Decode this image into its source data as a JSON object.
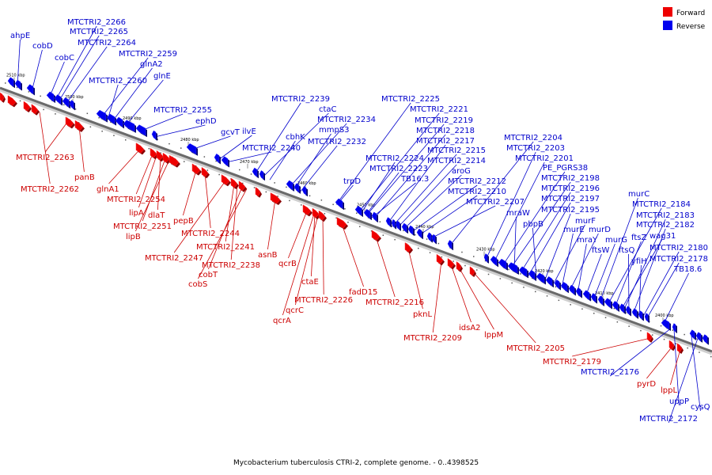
{
  "legend": [
    {
      "label": "Forward",
      "color": "#ee0000"
    },
    {
      "label": "Reverse",
      "color": "#0000ee"
    }
  ],
  "caption": "Mycobacterium tuberculosis CTRI-2, complete genome. - 0..4398525",
  "ticks": [
    "2510 kbp",
    "2500 kbp",
    "2490 kbp",
    "2480 kbp",
    "2470 kbp",
    "2460 kbp",
    "2450 kbp",
    "2440 kbp",
    "2430 kbp",
    "2420 kbp",
    "2410 kbp",
    "2400 kbp"
  ],
  "reverse_labels": [
    "ahpE",
    "cobD",
    "MTCTRI2_2266",
    "MTCTRI2_2265",
    "MTCTRI2_2264",
    "cobC",
    "MTCTRI2_2259",
    "glnA2",
    "MTCTRI2_2260",
    "glnE",
    "MTCTRI2_2255",
    "ephD",
    "gcvT",
    "ilvE",
    "MTCTRI2_2240",
    "MTCTRI2_2239",
    "ctaC",
    "MTCTRI2_2234",
    "cbhK",
    "mmpS3",
    "MTCTRI2_2232",
    "trpD",
    "MTCTRI2_2225",
    "MTCTRI2_2221",
    "MTCTRI2_2219",
    "MTCTRI2_2218",
    "MTCTRI2_2217",
    "MTCTRI2_2215",
    "MTCTRI2_2214",
    "MTCTRI2_2224",
    "MTCTRI2_2223",
    "aroG",
    "TB16.3",
    "MTCTRI2_2212",
    "MTCTRI2_2210",
    "MTCTRI2_2207",
    "MTCTRI2_2204",
    "MTCTRI2_2203",
    "MTCTRI2_2201",
    "PE_PGRS38",
    "MTCTRI2_2198",
    "mraW",
    "MTCTRI2_2196",
    "MTCTRI2_2197",
    "pbpB",
    "MTCTRI2_2195",
    "murF",
    "murE",
    "murD",
    "mraY",
    "ftsW",
    "murG",
    "murC",
    "MTCTRI2_2184",
    "ftsZ",
    "wag31",
    "MTCTRI2_2183",
    "ftsQ",
    "MTCTRI2_2182",
    "yfiH",
    "MTCTRI2_2180",
    "MTCTRI2_2178",
    "TB18.6",
    "MTCTRI2_2176",
    "uppP",
    "cysQ",
    "MTCTRI2_2172"
  ],
  "forward_labels": [
    "MTCTRI2_2263",
    "panB",
    "MTCTRI2_2262",
    "glnA1",
    "MTCTRI2_2254",
    "lipA",
    "dlaT",
    "MTCTRI2_2251",
    "lipB",
    "pepB",
    "MTCTRI2_2244",
    "MTCTRI2_2247",
    "MTCTRI2_2241",
    "cobT",
    "MTCTRI2_2238",
    "cobS",
    "asnB",
    "qcrB",
    "ctaE",
    "MTCTRI2_2226",
    "qcrC",
    "qcrA",
    "fadD15",
    "MTCTRI2_2216",
    "pknL",
    "MTCTRI2_2209",
    "idsA2",
    "lppM",
    "MTCTRI2_2205",
    "MTCTRI2_2179",
    "pyrD",
    "lppL"
  ]
}
